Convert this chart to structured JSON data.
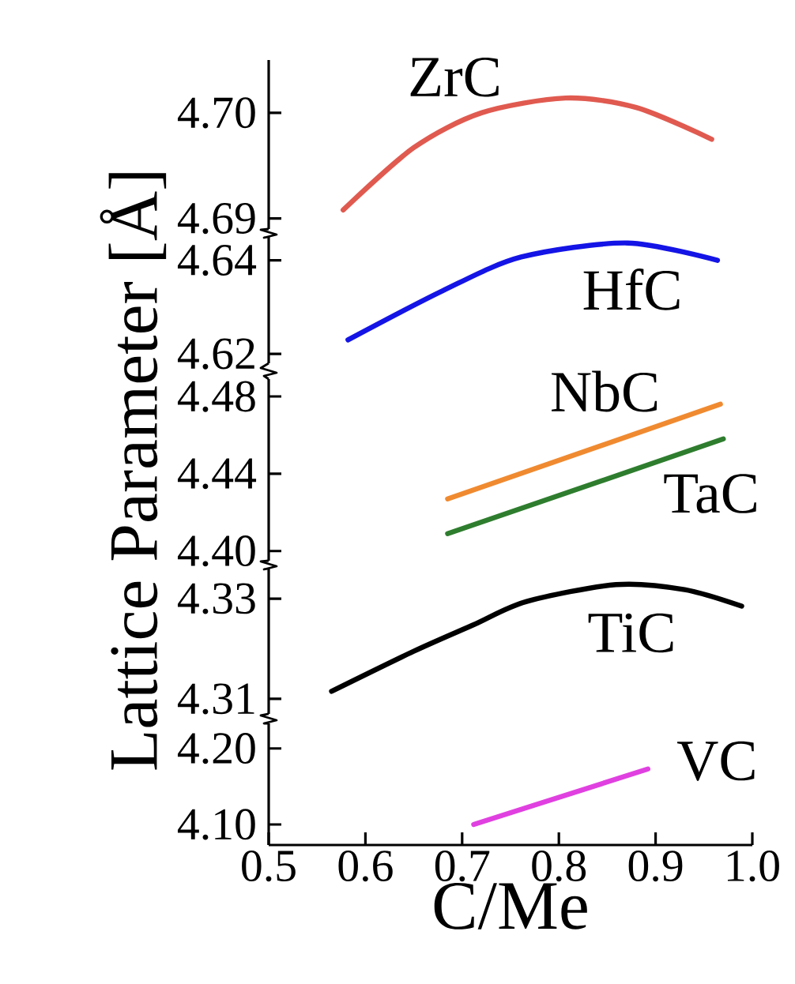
{
  "chart_data": [
    {
      "type": "line",
      "xlim": [
        0.5,
        1.0
      ],
      "ylim": [
        4.689,
        4.705
      ],
      "yticks": [
        4.69,
        {
          "value": 4.7,
          "label": "4.70"
        }
      ],
      "tick_labels": "y",
      "series": [
        {
          "name": "ZrC",
          "color": "#e05a50",
          "x": [
            0.577,
            0.65,
            0.72,
            0.807,
            0.88,
            0.958
          ],
          "values": [
            4.6908,
            4.6967,
            4.7,
            4.7014,
            4.7005,
            4.6975
          ]
        }
      ]
    },
    {
      "type": "line",
      "xlim": [
        0.5,
        1.0
      ],
      "ylim": [
        4.618,
        4.645
      ],
      "yticks": [
        4.62,
        4.64
      ],
      "tick_labels": "y",
      "series": [
        {
          "name": "HfC",
          "color": "#1414e6",
          "x": [
            0.582,
            0.68,
            0.761,
            0.871,
            0.964
          ],
          "values": [
            4.623,
            4.6335,
            4.6407,
            4.6437,
            4.64
          ]
        }
      ]
    },
    {
      "type": "line",
      "ylabel": "Lattice Parameter [Å]",
      "xlim": [
        0.5,
        1.0
      ],
      "ylim": [
        4.395,
        4.489
      ],
      "yticks": [
        {
          "value": 4.4,
          "label": "4.40"
        },
        4.44,
        4.48
      ],
      "tick_labels": "y",
      "series": [
        {
          "name": "NbC",
          "color": "#f08a30",
          "x": [
            0.685,
            0.967
          ],
          "values": [
            4.427,
            4.476
          ]
        },
        {
          "name": "TaC",
          "color": "#2e7d2e",
          "x": [
            0.685,
            0.97
          ],
          "values": [
            4.409,
            4.458
          ]
        }
      ]
    },
    {
      "type": "line",
      "xlim": [
        0.5,
        1.0
      ],
      "ylim": [
        4.307,
        4.336
      ],
      "yticks": [
        4.31,
        4.33
      ],
      "tick_labels": "y",
      "series": [
        {
          "name": "TiC",
          "color": "#000000",
          "x": [
            0.565,
            0.65,
            0.712,
            0.766,
            0.859,
            0.93,
            0.989
          ],
          "values": [
            4.3115,
            4.3195,
            4.3248,
            4.3294,
            4.3328,
            4.3318,
            4.3285
          ]
        }
      ]
    },
    {
      "type": "line",
      "xlabel": "C/Me",
      "xlim": [
        0.5,
        1.0
      ],
      "xticks": [
        0.5,
        0.6,
        0.7,
        0.8,
        0.9,
        {
          "value": 1.0,
          "label": "1.0"
        }
      ],
      "ylim": [
        4.073,
        4.233
      ],
      "yticks": [
        {
          "value": 4.1,
          "label": "4.10"
        },
        {
          "value": 4.2,
          "label": "4.20"
        }
      ],
      "series": [
        {
          "name": "VC",
          "color": "#e040e0",
          "x": [
            0.712,
            0.892
          ],
          "values": [
            4.1,
            4.173
          ]
        }
      ]
    }
  ]
}
